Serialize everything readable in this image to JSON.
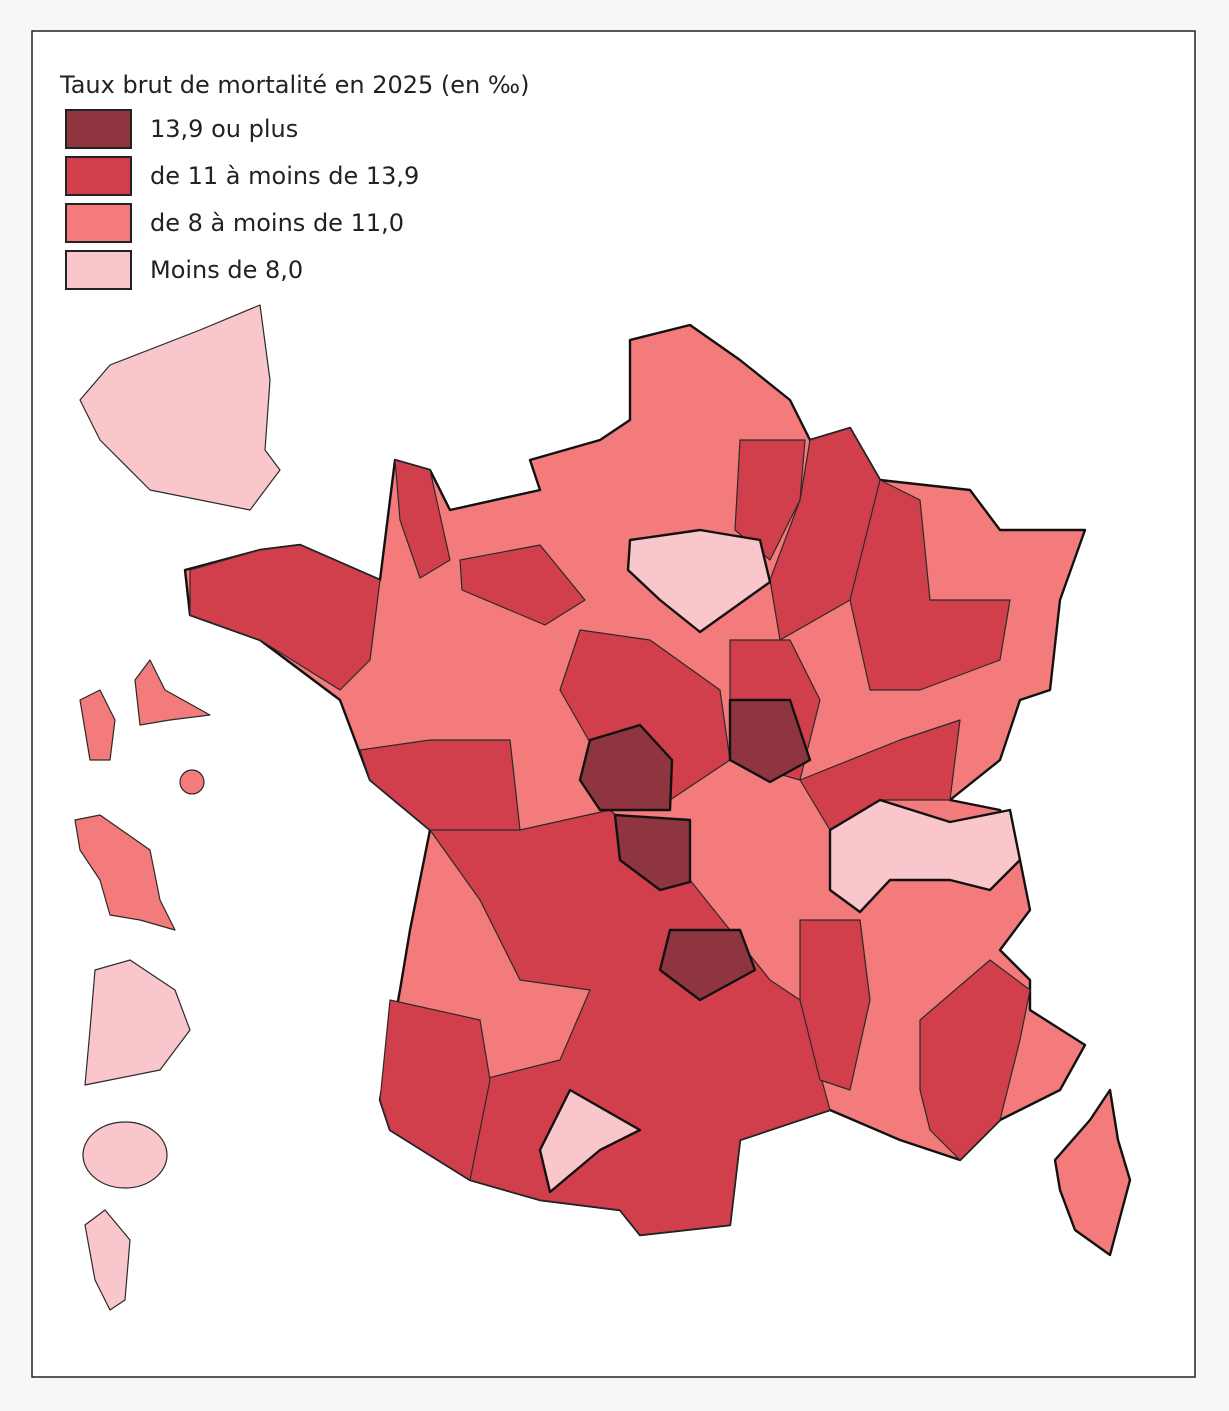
{
  "legend": {
    "title": "Taux brut de mortalité en 2025 (en ‰)",
    "items": [
      {
        "label": "13,9 ou plus",
        "color": "#8f3540"
      },
      {
        "label": "de 11 à moins de 13,9",
        "color": "#d13f4c"
      },
      {
        "label": "de 8 à moins de 11,0",
        "color": "#f47b7b"
      },
      {
        "label": "Moins de 8,0",
        "color": "#f9c6cc"
      }
    ]
  }
}
